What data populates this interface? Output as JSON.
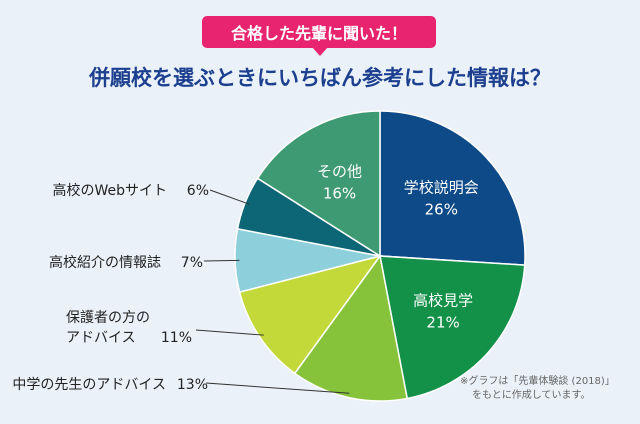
{
  "header": {
    "badge": "合格した先輩に聞いた！",
    "title": "併願校を選ぶときにいちばん参考にした情報は？"
  },
  "note": {
    "line1": "※グラフは「先輩体験談 (2018)」",
    "line2": "をもとに作成しています。"
  },
  "chart_data": {
    "type": "pie",
    "title": "併願校を選ぶときにいちばん参考にした情報は？",
    "unit": "%",
    "slices": [
      {
        "label": "学校説明会",
        "value": 26,
        "color": "#0e4a88",
        "label_inside": true
      },
      {
        "label": "高校見学",
        "value": 21,
        "color": "#139148",
        "label_inside": true
      },
      {
        "label": "中学の先生のアドバイス",
        "value": 13,
        "color": "#86c33a",
        "label_inside": false
      },
      {
        "label": "保護者の方のアドバイス",
        "value": 11,
        "color": "#c3d93a",
        "label_inside": false,
        "label_lines": [
          "保護者の方の",
          "アドバイス"
        ]
      },
      {
        "label": "高校紹介の情報誌",
        "value": 7,
        "color": "#8dd0dc",
        "label_inside": false
      },
      {
        "label": "高校のWebサイト",
        "value": 6,
        "color": "#0c6676",
        "label_inside": false
      },
      {
        "label": "その他",
        "value": 16,
        "color": "#3e9a72",
        "label_inside": true
      }
    ]
  }
}
